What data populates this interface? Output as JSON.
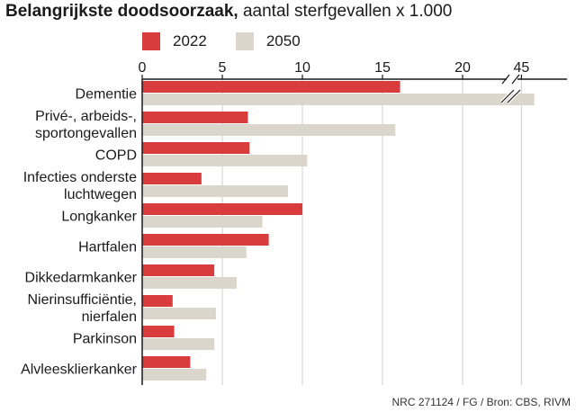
{
  "title": "Belangrijkste doodsoorzaak,",
  "subtitle": "aantal sterfgevallen x 1.000",
  "source": "NRC 271124 / FG / Bron: CBS, RIVM",
  "colors": {
    "series_2022": "#d93c3c",
    "series_2050": "#dad6cc",
    "axis": "#1a1a1a",
    "grid": "#cfcfcf"
  },
  "chart_data": {
    "type": "bar",
    "orientation": "horizontal",
    "categories": [
      [
        "Dementie"
      ],
      [
        "Privé-, arbeids-,",
        "sportongevallen"
      ],
      [
        "COPD"
      ],
      [
        "Infecties onderste",
        "luchtwegen"
      ],
      [
        "Longkanker"
      ],
      [
        "Hartfalen"
      ],
      [
        "Dikkedarmkanker"
      ],
      [
        "Nierinsufficiëntie,",
        "nierfalen"
      ],
      [
        "Parkinson"
      ],
      [
        "Alvleesklierkanker"
      ]
    ],
    "series": [
      {
        "name": "2022",
        "values": [
          16.1,
          6.6,
          6.7,
          3.7,
          10.0,
          7.9,
          4.5,
          1.9,
          2.0,
          3.0
        ]
      },
      {
        "name": "2050",
        "values": [
          45.8,
          15.8,
          10.3,
          9.1,
          7.5,
          6.5,
          5.9,
          4.6,
          4.5,
          4.0
        ]
      }
    ],
    "xticks": [
      "0",
      "5",
      "10",
      "15",
      "20",
      "45"
    ],
    "xlim": [
      0,
      46
    ],
    "axis_break": [
      22,
      44
    ],
    "grid": true,
    "legend": "top-left"
  }
}
